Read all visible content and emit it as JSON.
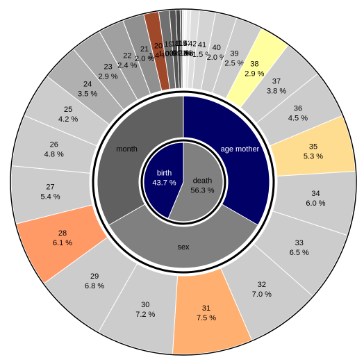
{
  "chart_data": {
    "type": "sunburst",
    "rings": [
      {
        "categories": [
          "death",
          "birth"
        ],
        "values": [
          56.3,
          43.7
        ],
        "value_labels": [
          "56.3 %",
          "43.7 %"
        ],
        "colors": [
          "#808080",
          "#000066"
        ],
        "text_colors": [
          "#000000",
          "#ffffff"
        ]
      },
      {
        "categories": [
          "age mother",
          "sex",
          "month"
        ],
        "values": [
          33.3,
          33.3,
          33.3
        ],
        "colors": [
          "#000066",
          "#808080",
          "#606060"
        ],
        "text_colors": [
          "#ffffff",
          "#000000",
          "#000000"
        ]
      },
      {
        "categories": [
          "45",
          "44",
          "43",
          "42",
          "41",
          "40",
          "39",
          "38",
          "37",
          "36",
          "35",
          "34",
          "33",
          "32",
          "31",
          "30",
          "29",
          "28",
          "27",
          "26",
          "25",
          "24",
          "23",
          "22",
          "21",
          "20",
          "19",
          "18",
          "17",
          "16",
          "15"
        ],
        "values": [
          0.1,
          0.2,
          0.4,
          0.8,
          1.5,
          2.0,
          2.5,
          2.9,
          3.8,
          4.5,
          5.3,
          6.0,
          6.5,
          7.0,
          7.5,
          7.2,
          6.8,
          6.1,
          5.4,
          4.8,
          4.2,
          3.5,
          2.9,
          2.4,
          2.0,
          1.4,
          1.0,
          0.6,
          0.4,
          0.2,
          0.1
        ],
        "value_labels": [
          "0.1 %",
          "0.2 %",
          "0.4 %",
          "0.8 %",
          "1.5 %",
          "2.0 %",
          "2.5 %",
          "2.9 %",
          "3.8 %",
          "4.5 %",
          "5.3 %",
          "6.0 %",
          "6.5 %",
          "7.0 %",
          "7.5 %",
          "7.2 %",
          "6.8 %",
          "6.1 %",
          "5.4 %",
          "4.8 %",
          "4.2 %",
          "3.5 %",
          "2.9 %",
          "2.4 %",
          "2.0 %",
          "1.4 %",
          "1.0 %",
          "0.6 %",
          "0.4 %",
          "0.2 %",
          "0.1 %"
        ],
        "colors": [
          "#ffffff",
          "#f4f4f4",
          "#e8e8e8",
          "#dddddd",
          "#d4d4d4",
          "#cccccc",
          "#cccccc",
          "#ffffa0",
          "#cccccc",
          "#cccccc",
          "#ffdd90",
          "#cccccc",
          "#cccccc",
          "#cccccc",
          "#ffb070",
          "#cccccc",
          "#cccccc",
          "#ff9966",
          "#cccccc",
          "#cccccc",
          "#cccccc",
          "#b0b0b0",
          "#a8a8a8",
          "#a0a0a0",
          "#909090",
          "#a0482a",
          "#707070",
          "#555555",
          "#444444",
          "#666666",
          "#888888"
        ]
      }
    ]
  }
}
